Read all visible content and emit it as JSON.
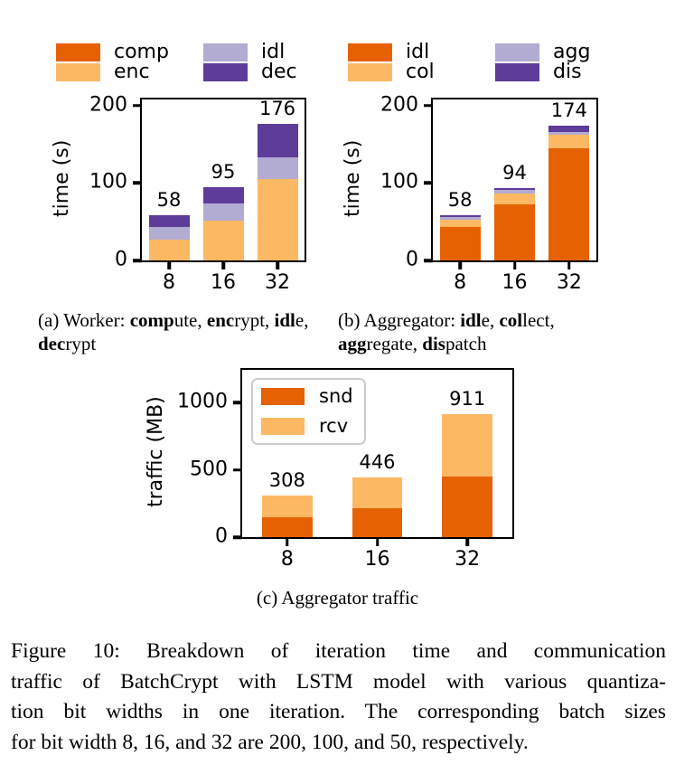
{
  "palette": {
    "dark_orange": "#e66101",
    "light_orange": "#fdb863",
    "light_purple": "#b2abd2",
    "dark_purple": "#5e3c99",
    "legend_border": "#cccccc"
  },
  "chart_data": [
    {
      "id": "a",
      "type": "bar",
      "stacked": true,
      "categories": [
        "8",
        "16",
        "32"
      ],
      "series": [
        {
          "name": "comp",
          "color": "#e66101",
          "values": [
            0,
            0,
            0
          ]
        },
        {
          "name": "enc",
          "color": "#fdb863",
          "values": [
            27,
            52,
            105
          ]
        },
        {
          "name": "idl",
          "color": "#b2abd2",
          "values": [
            16,
            22,
            28
          ]
        },
        {
          "name": "dec",
          "color": "#5e3c99",
          "values": [
            15,
            21,
            43
          ]
        }
      ],
      "totals": [
        58,
        95,
        176
      ],
      "bar_labels": [
        "58",
        "95",
        "176"
      ],
      "ylabel": "time (s)",
      "ylim": [
        0,
        208
      ],
      "yticks": [
        0,
        100,
        200
      ],
      "grid": false,
      "legend": {
        "position": "above",
        "columns": [
          [
            {
              "label": "comp",
              "color": "#e66101"
            },
            {
              "label": "enc",
              "color": "#fdb863"
            }
          ],
          [
            {
              "label": "idl",
              "color": "#b2abd2"
            },
            {
              "label": "dec",
              "color": "#5e3c99"
            }
          ]
        ]
      }
    },
    {
      "id": "b",
      "type": "bar",
      "stacked": true,
      "categories": [
        "8",
        "16",
        "32"
      ],
      "series": [
        {
          "name": "idl",
          "color": "#e66101",
          "values": [
            43,
            72,
            145
          ]
        },
        {
          "name": "col",
          "color": "#fdb863",
          "values": [
            10,
            15,
            17
          ]
        },
        {
          "name": "agg",
          "color": "#b2abd2",
          "values": [
            3,
            4,
            4
          ]
        },
        {
          "name": "dis",
          "color": "#5e3c99",
          "values": [
            2,
            3,
            8
          ]
        }
      ],
      "totals": [
        58,
        94,
        174
      ],
      "bar_labels": [
        "58",
        "94",
        "174"
      ],
      "ylabel": "time (s)",
      "ylim": [
        0,
        208
      ],
      "yticks": [
        0,
        100,
        200
      ],
      "grid": false,
      "legend": {
        "position": "above",
        "columns": [
          [
            {
              "label": "idl",
              "color": "#e66101"
            },
            {
              "label": "col",
              "color": "#fdb863"
            }
          ],
          [
            {
              "label": "agg",
              "color": "#b2abd2"
            },
            {
              "label": "dis",
              "color": "#5e3c99"
            }
          ]
        ]
      }
    },
    {
      "id": "c",
      "type": "bar",
      "stacked": true,
      "categories": [
        "8",
        "16",
        "32"
      ],
      "series": [
        {
          "name": "snd",
          "color": "#e66101",
          "values": [
            145,
            215,
            450
          ]
        },
        {
          "name": "rcv",
          "color": "#fdb863",
          "values": [
            163,
            231,
            461
          ]
        }
      ],
      "totals": [
        308,
        446,
        911
      ],
      "bar_labels": [
        "308",
        "446",
        "911"
      ],
      "ylabel": "traffic (MB)",
      "ylim": [
        0,
        1242
      ],
      "yticks": [
        0,
        500,
        1000
      ],
      "grid": false,
      "legend": {
        "position": "inside-top-left",
        "columns": [
          [
            {
              "label": "snd",
              "color": "#e66101"
            },
            {
              "label": "rcv",
              "color": "#fdb863"
            }
          ]
        ]
      }
    }
  ],
  "subcaptions": {
    "a": {
      "segments": [
        {
          "t": "(a) Worker: ",
          "b": false
        },
        {
          "t": "comp",
          "b": true
        },
        {
          "t": "ute, ",
          "b": false
        },
        {
          "t": "enc",
          "b": true
        },
        {
          "t": "rypt, ",
          "b": false
        },
        {
          "t": "idl",
          "b": true
        },
        {
          "t": "e, ",
          "b": false
        },
        {
          "t": "dec",
          "b": true
        },
        {
          "t": "rypt",
          "b": false
        }
      ]
    },
    "b": {
      "segments": [
        {
          "t": "(b) Aggregator: ",
          "b": false
        },
        {
          "t": "idl",
          "b": true
        },
        {
          "t": "e, ",
          "b": false
        },
        {
          "t": "col",
          "b": true
        },
        {
          "t": "lect, ",
          "b": false
        },
        {
          "t": "agg",
          "b": true
        },
        {
          "t": "regate, ",
          "b": false
        },
        {
          "t": "dis",
          "b": true
        },
        {
          "t": "patch",
          "b": false
        }
      ]
    },
    "c": {
      "segments": [
        {
          "t": "(c) Aggregator traffic",
          "b": false
        }
      ]
    }
  },
  "figure": {
    "caption_lines": [
      "Figure 10: Breakdown of iteration time and communication",
      "traffic of BatchCrypt with LSTM model with various quantiza-",
      "tion bit widths in one iteration. The corresponding batch sizes",
      "for bit width 8, 16, and 32 are 200, 100, and 50, respectively."
    ]
  }
}
